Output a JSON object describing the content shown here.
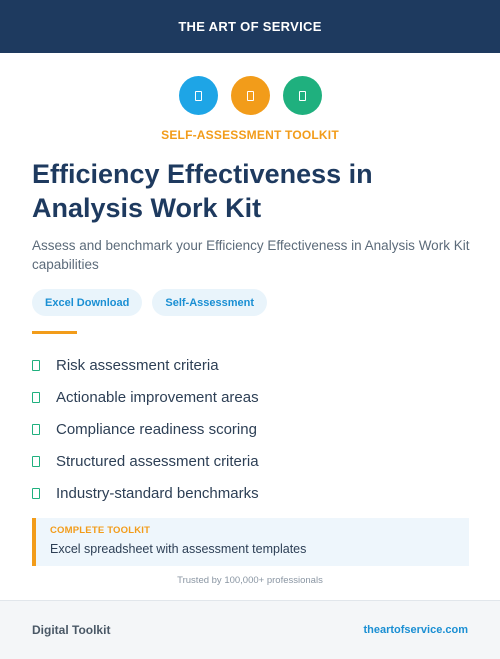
{
  "header": {
    "brand": "THE ART OF SERVICE"
  },
  "icons": [
    {
      "name": "document-icon",
      "color": "#1ea5e6"
    },
    {
      "name": "document-icon",
      "color": "#f29c1a"
    },
    {
      "name": "document-icon",
      "color": "#1fb07e"
    }
  ],
  "eyebrow": "SELF-ASSESSMENT TOOLKIT",
  "title": "Efficiency Effectiveness in Analysis Work Kit",
  "subtitle": "Assess and benchmark your Efficiency Effectiveness in Analysis Work Kit capabilities",
  "tags": [
    "Excel Download",
    "Self-Assessment"
  ],
  "features": [
    "Risk assessment criteria",
    "Actionable improvement areas",
    "Compliance readiness scoring",
    "Structured assessment criteria",
    "Industry-standard benchmarks"
  ],
  "callout": {
    "label": "COMPLETE TOOLKIT",
    "text": "Excel spreadsheet with assessment templates"
  },
  "trusted": "Trusted by 100,000+ professionals",
  "footer": {
    "left": "Digital Toolkit",
    "right": "theartofservice.com"
  },
  "colors": {
    "navy": "#1e3a5f",
    "orange": "#f29c1a",
    "blue": "#1ea5e6",
    "green": "#1fb07e"
  }
}
